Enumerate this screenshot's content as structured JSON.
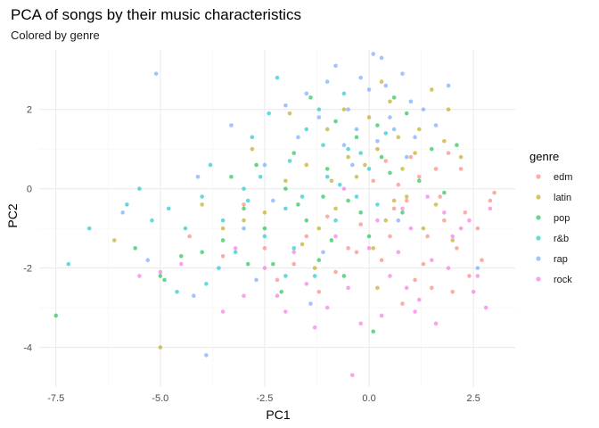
{
  "chart_data": {
    "type": "scatter",
    "title": "PCA of songs by their music characteristics",
    "subtitle": "Colored by genre",
    "xlabel": "PC1",
    "ylabel": "PC2",
    "xlim": [
      -7.9,
      3.5
    ],
    "ylim": [
      -5.0,
      3.5
    ],
    "x_ticks": [
      -7.5,
      -5.0,
      -2.5,
      0.0,
      2.5
    ],
    "x_tick_labels": [
      "-7.5",
      "-5.0",
      "-2.5",
      "0.0",
      "2.5"
    ],
    "y_ticks": [
      -4,
      -2,
      0,
      2
    ],
    "y_tick_labels": [
      "-4",
      "-2",
      "0",
      "2"
    ],
    "grid": true,
    "legend": {
      "title": "genre",
      "placement": "right"
    },
    "series": [
      {
        "name": "edm",
        "color": "#F8766D",
        "values": [
          [
            2.1,
            -1.5
          ],
          [
            1.8,
            -0.8
          ],
          [
            2.6,
            -1.0
          ],
          [
            1.3,
            -1.9
          ],
          [
            0.9,
            -0.3
          ],
          [
            2.9,
            -0.3
          ],
          [
            3.0,
            -0.1
          ],
          [
            1.5,
            -2.5
          ],
          [
            0.5,
            -1.2
          ],
          [
            2.2,
            0.5
          ],
          [
            1.0,
            0.8
          ],
          [
            1.7,
            -0.2
          ],
          [
            0.3,
            -1.8
          ],
          [
            -0.2,
            -0.9
          ],
          [
            1.2,
            0.3
          ],
          [
            2.4,
            -2.2
          ],
          [
            0.8,
            -2.9
          ],
          [
            -0.5,
            -1.5
          ],
          [
            -1.0,
            -0.7
          ],
          [
            1.9,
            0.9
          ],
          [
            -1.5,
            -1.2
          ],
          [
            0.1,
            0.2
          ],
          [
            2.7,
            -1.8
          ],
          [
            0.6,
            -0.5
          ],
          [
            1.4,
            -1.2
          ],
          [
            -1.8,
            -1.9
          ],
          [
            -2.5,
            -1.5
          ],
          [
            -3.0,
            -0.4
          ],
          [
            -3.5,
            -1.7
          ],
          [
            -2.2,
            -2.3
          ],
          [
            0.4,
            0.7
          ],
          [
            2.0,
            -2.6
          ],
          [
            1.1,
            -2.3
          ],
          [
            -0.8,
            -2.1
          ],
          [
            -1.2,
            -2.6
          ],
          [
            0.7,
            0.1
          ],
          [
            1.6,
            0.5
          ],
          [
            -4.3,
            -1.2
          ],
          [
            -0.3,
            -1.6
          ],
          [
            2.3,
            -0.6
          ]
        ]
      },
      {
        "name": "latin",
        "color": "#B79F00",
        "values": [
          [
            0.2,
            1.0
          ],
          [
            0.8,
            0.5
          ],
          [
            -0.5,
            0.8
          ],
          [
            1.2,
            1.5
          ],
          [
            0.5,
            2.2
          ],
          [
            -1.0,
            1.5
          ],
          [
            1.5,
            2.5
          ],
          [
            -0.3,
            0.3
          ],
          [
            0.9,
            -0.2
          ],
          [
            -1.5,
            0.6
          ],
          [
            0.0,
            1.8
          ],
          [
            1.8,
            1.2
          ],
          [
            -2.0,
            0.2
          ],
          [
            -0.8,
            -0.5
          ],
          [
            2.2,
            0.8
          ],
          [
            -1.2,
            -1.0
          ],
          [
            0.4,
            -0.8
          ],
          [
            1.1,
            0.9
          ],
          [
            -0.6,
            2.0
          ],
          [
            -2.5,
            -0.6
          ],
          [
            0.7,
            1.3
          ],
          [
            -3.0,
            -0.8
          ],
          [
            -1.6,
            -1.4
          ],
          [
            0.1,
            -1.5
          ],
          [
            1.6,
            -0.4
          ],
          [
            -4.0,
            -0.4
          ],
          [
            -0.9,
            0.2
          ],
          [
            0.3,
            2.7
          ],
          [
            -5.0,
            -4.0
          ],
          [
            -6.1,
            -1.3
          ],
          [
            -2.8,
            1.0
          ],
          [
            1.3,
            -1.0
          ],
          [
            -0.1,
            0.6
          ],
          [
            -1.9,
            1.9
          ],
          [
            2.0,
            -1.3
          ],
          [
            -3.5,
            -1.0
          ],
          [
            0.6,
            -0.3
          ],
          [
            -1.3,
            -2.0
          ],
          [
            0.2,
            -2.5
          ],
          [
            1.9,
            2.0
          ]
        ]
      },
      {
        "name": "pop",
        "color": "#00BA38",
        "values": [
          [
            -0.5,
            -0.3
          ],
          [
            -1.0,
            0.5
          ],
          [
            0.3,
            0.8
          ],
          [
            -1.5,
            -0.8
          ],
          [
            -2.0,
            0.0
          ],
          [
            -0.3,
            1.3
          ],
          [
            0.8,
            -0.6
          ],
          [
            -2.5,
            -1.0
          ],
          [
            -1.2,
            -1.8
          ],
          [
            1.2,
            0.2
          ],
          [
            -0.8,
            1.7
          ],
          [
            -3.0,
            -0.5
          ],
          [
            0.0,
            -1.2
          ],
          [
            -1.8,
            0.9
          ],
          [
            -2.3,
            -1.9
          ],
          [
            0.5,
            0.4
          ],
          [
            -3.5,
            -1.3
          ],
          [
            -4.0,
            -1.6
          ],
          [
            -0.6,
            -2.2
          ],
          [
            1.5,
            1.0
          ],
          [
            -1.4,
            2.3
          ],
          [
            -2.7,
            0.6
          ],
          [
            0.2,
            1.6
          ],
          [
            -4.5,
            -1.7
          ],
          [
            -5.0,
            -2.2
          ],
          [
            -5.6,
            -1.5
          ],
          [
            -7.5,
            -3.2
          ],
          [
            0.1,
            -3.6
          ],
          [
            -1.1,
            -0.2
          ],
          [
            0.9,
            1.9
          ],
          [
            -2.1,
            -2.6
          ],
          [
            1.8,
            -0.1
          ],
          [
            -0.2,
            -0.6
          ],
          [
            -3.3,
            0.3
          ],
          [
            -1.7,
            -0.4
          ],
          [
            0.6,
            2.3
          ],
          [
            -0.9,
            -1.3
          ],
          [
            2.1,
            1.1
          ],
          [
            -2.9,
            -1.9
          ],
          [
            -4.9,
            -2.3
          ]
        ]
      },
      {
        "name": "r&b",
        "color": "#00BFC4",
        "values": [
          [
            -1.0,
            0.3
          ],
          [
            -2.0,
            -0.5
          ],
          [
            -0.5,
            1.0
          ],
          [
            -1.5,
            1.5
          ],
          [
            -3.0,
            0.0
          ],
          [
            -2.5,
            -1.2
          ],
          [
            0.0,
            0.5
          ],
          [
            -0.8,
            -0.8
          ],
          [
            -1.8,
            -1.5
          ],
          [
            -3.5,
            -0.8
          ],
          [
            -4.0,
            -0.2
          ],
          [
            -2.2,
            2.8
          ],
          [
            -1.2,
            2.0
          ],
          [
            -0.3,
            -0.2
          ],
          [
            -4.6,
            -2.6
          ],
          [
            -5.2,
            -0.8
          ],
          [
            -6.7,
            -1.0
          ],
          [
            -7.2,
            -1.9
          ],
          [
            -2.8,
            1.3
          ],
          [
            -3.8,
            0.6
          ],
          [
            -1.6,
            -0.2
          ],
          [
            0.4,
            1.4
          ],
          [
            -0.6,
            2.4
          ],
          [
            -2.6,
            0.3
          ],
          [
            -3.2,
            -1.6
          ],
          [
            -4.4,
            -1.0
          ],
          [
            -5.5,
            0.0
          ],
          [
            -1.3,
            -2.2
          ],
          [
            -0.2,
            0.9
          ],
          [
            -2.4,
            1.9
          ],
          [
            -3.6,
            -2.0
          ],
          [
            -1.9,
            0.7
          ],
          [
            -0.7,
            0.1
          ],
          [
            -4.8,
            -0.5
          ],
          [
            -5.8,
            -0.4
          ],
          [
            -2.0,
            -2.2
          ],
          [
            0.2,
            -0.4
          ],
          [
            -1.1,
            1.1
          ],
          [
            -3.9,
            -2.4
          ],
          [
            -2.9,
            -0.3
          ]
        ]
      },
      {
        "name": "rap",
        "color": "#619CFF",
        "values": [
          [
            0.0,
            2.5
          ],
          [
            0.5,
            1.8
          ],
          [
            -0.5,
            2.0
          ],
          [
            1.0,
            2.2
          ],
          [
            -1.0,
            2.7
          ],
          [
            0.3,
            3.3
          ],
          [
            -0.3,
            1.5
          ],
          [
            0.8,
            2.9
          ],
          [
            -1.5,
            2.4
          ],
          [
            0.2,
            1.2
          ],
          [
            1.3,
            2.0
          ],
          [
            -0.8,
            3.1
          ],
          [
            0.6,
            1.5
          ],
          [
            -0.2,
            2.8
          ],
          [
            1.6,
            1.6
          ],
          [
            -1.2,
            1.8
          ],
          [
            -2.0,
            2.1
          ],
          [
            0.1,
            3.4
          ],
          [
            -5.1,
            2.9
          ],
          [
            -3.9,
            -4.2
          ],
          [
            -5.3,
            -1.8
          ],
          [
            -5.9,
            -0.6
          ],
          [
            -4.2,
            -2.7
          ],
          [
            -3.0,
            -1.0
          ],
          [
            -2.5,
            0.6
          ],
          [
            0.9,
            0.8
          ],
          [
            -0.6,
            1.1
          ],
          [
            0.4,
            2.6
          ],
          [
            1.9,
            2.6
          ],
          [
            -1.7,
            1.3
          ],
          [
            -0.4,
            0.6
          ],
          [
            1.1,
            1.3
          ],
          [
            -2.3,
            -0.3
          ],
          [
            -1.1,
            -1.6
          ],
          [
            0.7,
            -0.8
          ],
          [
            -3.3,
            1.6
          ],
          [
            -4.1,
            0.3
          ],
          [
            -2.7,
            -2.3
          ],
          [
            -1.4,
            -2.9
          ],
          [
            2.6,
            -2.0
          ]
        ]
      },
      {
        "name": "rock",
        "color": "#F564E3",
        "values": [
          [
            1.0,
            -1.0
          ],
          [
            1.5,
            -1.8
          ],
          [
            0.5,
            -2.2
          ],
          [
            2.0,
            -1.2
          ],
          [
            1.2,
            -2.8
          ],
          [
            0.0,
            -1.5
          ],
          [
            2.5,
            -2.6
          ],
          [
            0.8,
            -0.5
          ],
          [
            1.8,
            -0.6
          ],
          [
            -0.5,
            -2.5
          ],
          [
            -1.0,
            -3.0
          ],
          [
            2.8,
            -3.0
          ],
          [
            -2.0,
            -3.1
          ],
          [
            -3.0,
            -2.7
          ],
          [
            -0.4,
            -4.7
          ],
          [
            0.3,
            -3.2
          ],
          [
            1.6,
            -3.4
          ],
          [
            -1.5,
            -2.4
          ],
          [
            -2.5,
            -2.0
          ],
          [
            0.7,
            -1.6
          ],
          [
            1.4,
            -0.2
          ],
          [
            2.2,
            -1.0
          ],
          [
            -0.2,
            -3.4
          ],
          [
            -3.5,
            -3.1
          ],
          [
            -5.0,
            -2.1
          ],
          [
            -4.5,
            -1.9
          ],
          [
            -5.5,
            -2.2
          ],
          [
            2.6,
            -2.2
          ],
          [
            0.2,
            -0.8
          ],
          [
            1.9,
            -2.0
          ],
          [
            -0.8,
            -1.2
          ],
          [
            -1.8,
            -1.6
          ],
          [
            -2.2,
            -2.7
          ],
          [
            0.9,
            -2.5
          ],
          [
            2.4,
            -0.8
          ],
          [
            1.1,
            -3.1
          ],
          [
            -1.3,
            -3.5
          ],
          [
            -3.2,
            -1.5
          ],
          [
            -0.6,
            0.0
          ],
          [
            2.9,
            -0.5
          ]
        ]
      }
    ]
  }
}
